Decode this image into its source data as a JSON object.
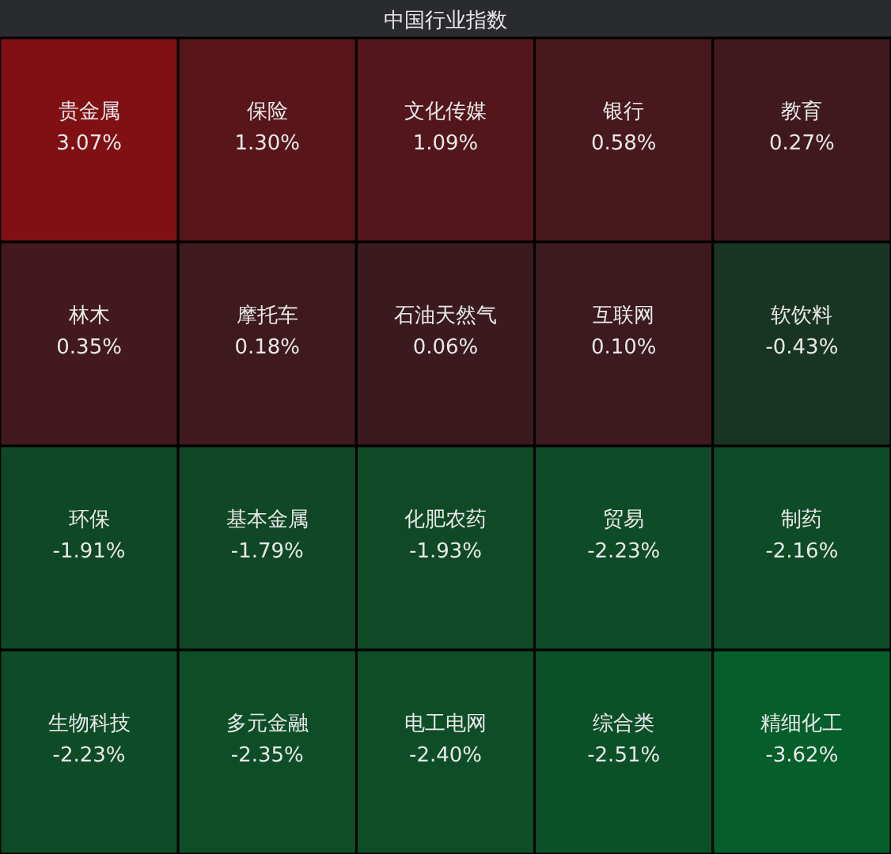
{
  "chart_data": {
    "type": "other",
    "title": "中国行业指数",
    "categories": [
      "贵金属",
      "保险",
      "文化传媒",
      "银行",
      "教育",
      "林木",
      "摩托车",
      "石油天然气",
      "互联网",
      "软饮料",
      "环保",
      "基本金属",
      "化肥农药",
      "贸易",
      "制药",
      "生物科技",
      "多元金融",
      "电工电网",
      "综合类",
      "精细化工"
    ],
    "values": [
      3.07,
      1.3,
      1.09,
      0.58,
      0.27,
      0.35,
      0.18,
      0.06,
      0.1,
      -0.43,
      -1.91,
      -1.79,
      -1.93,
      -2.23,
      -2.16,
      -2.23,
      -2.35,
      -2.4,
      -2.51,
      -3.62
    ],
    "value_labels": [
      "3.07%",
      "1.30%",
      "1.09%",
      "0.58%",
      "0.27%",
      "0.35%",
      "0.18%",
      "0.06%",
      "0.10%",
      "-0.43%",
      "-1.91%",
      "-1.79%",
      "-1.93%",
      "-2.23%",
      "-2.16%",
      "-2.23%",
      "-2.35%",
      "-2.40%",
      "-2.51%",
      "-3.62%"
    ]
  }
}
